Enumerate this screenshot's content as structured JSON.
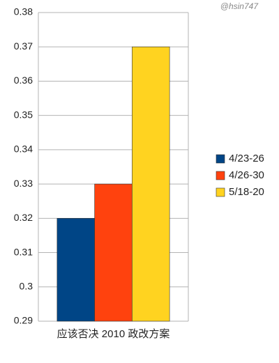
{
  "chart_data": {
    "type": "bar",
    "annotation": "@hsin747",
    "categories": [
      "应该否决 2010 政改方案"
    ],
    "series": [
      {
        "name": "4/23-26",
        "color": "#004586",
        "values": [
          0.32
        ]
      },
      {
        "name": "4/26-30",
        "color": "#ff420e",
        "values": [
          0.33
        ]
      },
      {
        "name": "5/18-20",
        "color": "#ffd320",
        "values": [
          0.37
        ]
      }
    ],
    "ylim": [
      0.29,
      0.38
    ],
    "yticks": [
      0.29,
      0.3,
      0.31,
      0.32,
      0.33,
      0.34,
      0.35,
      0.36,
      0.37,
      0.38
    ],
    "grid": true,
    "legend": "right"
  }
}
